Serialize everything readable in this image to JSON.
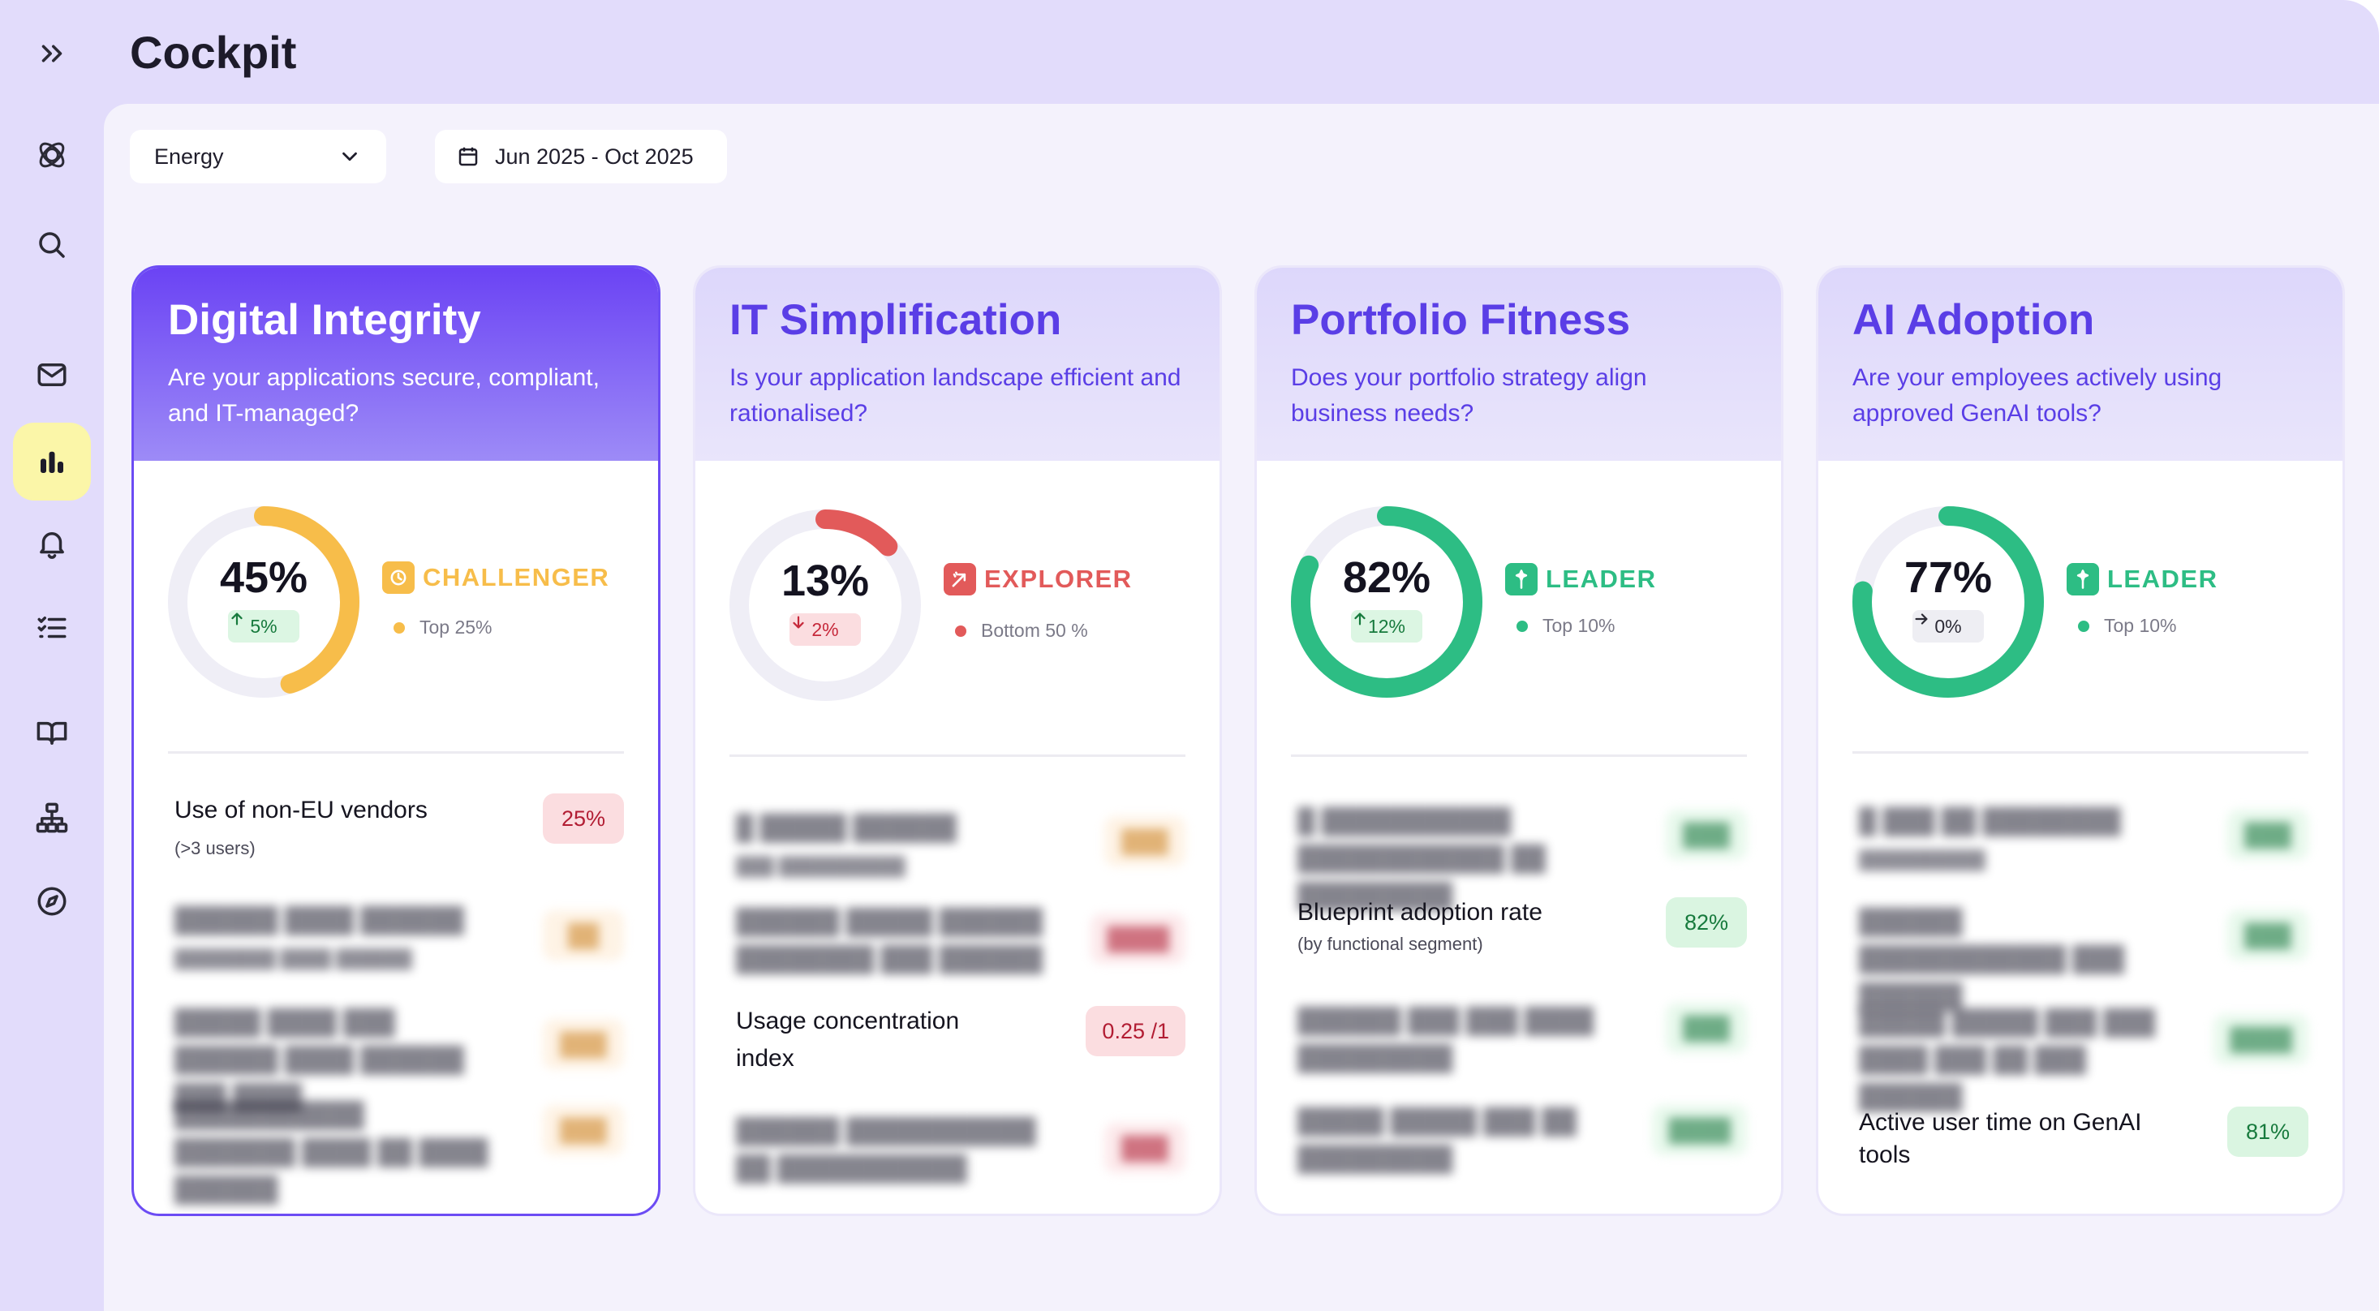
{
  "page": {
    "title": "Cockpit"
  },
  "sidebar": {
    "items": [
      {
        "name": "expand",
        "icon": "chevrons-right-icon"
      },
      {
        "name": "logo",
        "icon": "logo-icon"
      },
      {
        "name": "search",
        "icon": "search-icon"
      },
      {
        "name": "inbox",
        "icon": "mail-icon"
      },
      {
        "name": "cockpit",
        "icon": "bar-chart-icon",
        "active": true
      },
      {
        "name": "notifications",
        "icon": "bell-icon"
      },
      {
        "name": "tasks",
        "icon": "checklist-icon"
      },
      {
        "name": "library",
        "icon": "book-icon"
      },
      {
        "name": "architecture",
        "icon": "hierarchy-icon"
      },
      {
        "name": "explore",
        "icon": "compass-icon"
      }
    ]
  },
  "filters": {
    "sector": {
      "value": "Energy",
      "icon": "chevron-down-icon"
    },
    "date_range": {
      "value": "Jun 2025 - Oct 2025",
      "icon": "calendar-icon"
    }
  },
  "colors": {
    "accent": "#5a3ee6",
    "challenger": "#f7bd4a",
    "explorer": "#e25a5a",
    "leader": "#2dbd84",
    "track": "#efeef6"
  },
  "cards": [
    {
      "title": "Digital Integrity",
      "question": "Are your applications secure, compliant, and IT-managed?",
      "score": "45%",
      "score_fraction": 0.45,
      "delta": "5%",
      "delta_direction": "up",
      "tier": "CHALLENGER",
      "rank": "Top 25%",
      "metrics": [
        {
          "label": "Use of non-EU vendors",
          "sub": "(>3 users)",
          "value": "25%",
          "tone": "red"
        }
      ]
    },
    {
      "title": "IT Simplification",
      "question": "Is your application landscape efficient and rationalised?",
      "score": "13%",
      "score_fraction": 0.13,
      "delta": "2%",
      "delta_direction": "down",
      "tier": "EXPLORER",
      "rank": "Bottom 50 %",
      "metrics": [
        {
          "label": "Usage concentration index",
          "value": "0.25 /1",
          "tone": "red"
        }
      ]
    },
    {
      "title": "Portfolio Fitness",
      "question": "Does your portfolio strategy align business needs?",
      "score": "82%",
      "score_fraction": 0.82,
      "delta": "12%",
      "delta_direction": "up",
      "tier": "LEADER",
      "rank": "Top 10%",
      "metrics": [
        {
          "label": "Blueprint adoption rate",
          "sub": "(by functional segment)",
          "value": "82%",
          "tone": "green"
        }
      ]
    },
    {
      "title": "AI Adoption",
      "question": "Are your employees actively using approved GenAI tools?",
      "score": "77%",
      "score_fraction": 0.77,
      "delta": "0%",
      "delta_direction": "flat",
      "tier": "LEADER",
      "rank": "Top 10%",
      "metrics": [
        {
          "label": "Active user time on GenAI tools",
          "value": "81%",
          "tone": "green"
        }
      ]
    }
  ]
}
